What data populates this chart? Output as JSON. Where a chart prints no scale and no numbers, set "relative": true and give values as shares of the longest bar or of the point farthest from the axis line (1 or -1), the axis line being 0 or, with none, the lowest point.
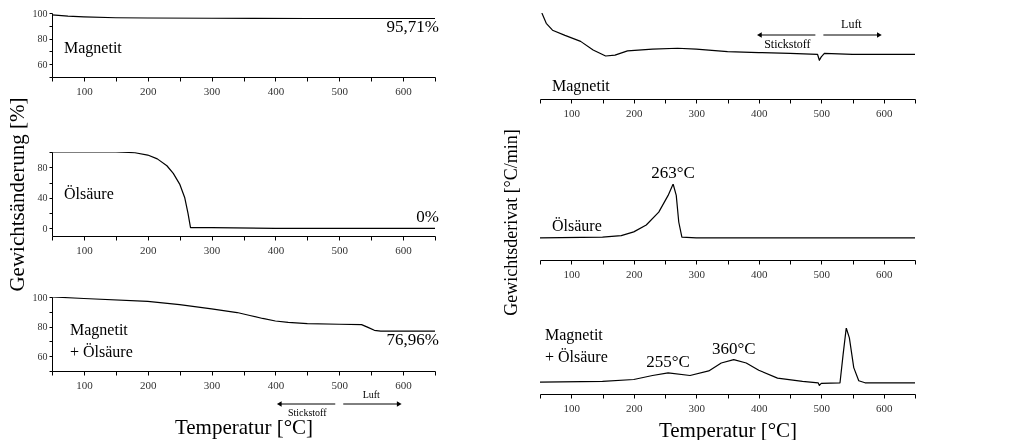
{
  "chart_data": [
    {
      "type": "line",
      "xlim": [
        50,
        650
      ],
      "ylim": [
        50,
        100
      ],
      "xticks": [
        {
          "value": 50,
          "label": null
        },
        100,
        {
          "value": 150,
          "label": null
        },
        200,
        {
          "value": 250,
          "label": null
        },
        300,
        {
          "value": 350,
          "label": null
        },
        400,
        {
          "value": 450,
          "label": null
        },
        500,
        {
          "value": 550,
          "label": null
        },
        600,
        {
          "value": 650,
          "label": null
        }
      ],
      "yticks": [
        {
          "value": 50,
          "label": null
        },
        60,
        {
          "value": 70,
          "label": null
        },
        80,
        {
          "value": 90,
          "label": null
        },
        100
      ],
      "series": [
        {
          "name": "Magnetit",
          "color": "#000000",
          "x": [
            50,
            75,
            100,
            150,
            200,
            300,
            450,
            650
          ],
          "values": [
            98.5,
            97.6,
            97,
            96.3,
            96.1,
            95.9,
            95.7,
            95.71
          ]
        }
      ],
      "annotations": [
        {
          "text": "95,71%",
          "x": 650,
          "y": 95.71
        }
      ]
    },
    {
      "type": "line",
      "xlim": [
        50,
        650
      ],
      "ylim": [
        -10,
        100
      ],
      "xticks": [
        {
          "value": 50,
          "label": null
        },
        100,
        {
          "value": 150,
          "label": null
        },
        200,
        {
          "value": 250,
          "label": null
        },
        300,
        {
          "value": 350,
          "label": null
        },
        400,
        {
          "value": 450,
          "label": null
        },
        500,
        {
          "value": 550,
          "label": null
        },
        600,
        {
          "value": 650,
          "label": null
        }
      ],
      "yticks": [
        0,
        {
          "value": 20,
          "label": null
        },
        40,
        {
          "value": 60,
          "label": null
        },
        80,
        {
          "value": 100,
          "label": null
        }
      ],
      "ylabel": "Gewichtsänderung [%]",
      "series": [
        {
          "name": "Ölsäure",
          "color": "#000000",
          "x": [
            50,
            150,
            180,
            200,
            215,
            230,
            240,
            250,
            258,
            263,
            267,
            300,
            400,
            650
          ],
          "values": [
            100,
            100,
            99,
            96,
            91,
            82,
            72,
            58,
            40,
            20,
            1,
            1,
            0,
            0
          ]
        }
      ],
      "annotations": [
        {
          "text": "0%",
          "x": 650,
          "y": 0
        }
      ]
    },
    {
      "type": "line",
      "xlim": [
        50,
        650
      ],
      "ylim": [
        50,
        100
      ],
      "xticks": [
        {
          "value": 50,
          "label": null
        },
        100,
        {
          "value": 150,
          "label": null
        },
        200,
        {
          "value": 250,
          "label": null
        },
        300,
        {
          "value": 350,
          "label": null
        },
        400,
        {
          "value": 450,
          "label": null
        },
        500,
        {
          "value": 550,
          "label": null
        },
        600,
        {
          "value": 650,
          "label": null
        }
      ],
      "yticks": [
        {
          "value": 50,
          "label": null
        },
        60,
        {
          "value": 70,
          "label": null
        },
        80,
        {
          "value": 90,
          "label": null
        },
        100
      ],
      "xlabel": "Temperatur [°C]",
      "series": [
        {
          "name": "Magnetit\n+ Ölsäure",
          "color": "#000000",
          "x": [
            50,
            100,
            200,
            250,
            300,
            340,
            360,
            380,
            400,
            420,
            450,
            500,
            535,
            545,
            555,
            565,
            650
          ],
          "values": [
            100,
            99,
            97,
            94.8,
            92,
            89.5,
            87.5,
            85.5,
            83.8,
            82.8,
            82,
            81.6,
            81.3,
            79.5,
            77.5,
            77,
            76.96
          ]
        }
      ],
      "annotations": [
        {
          "text": "76,96%",
          "x": 650,
          "y": 76.96
        },
        "Stickstoff",
        "Luft"
      ]
    },
    {
      "type": "line",
      "relative": true,
      "tick_labels": "x",
      "xlim": [
        50,
        650
      ],
      "xticks": [
        {
          "value": 50,
          "label": null
        },
        100,
        {
          "value": 150,
          "label": null
        },
        200,
        {
          "value": 250,
          "label": null
        },
        300,
        {
          "value": 350,
          "label": null
        },
        400,
        {
          "value": 450,
          "label": null
        },
        500,
        {
          "value": 550,
          "label": null
        },
        600,
        {
          "value": 650,
          "label": null
        }
      ],
      "series": [
        {
          "name": "Magnetit",
          "color": "#000000",
          "x": [
            53,
            60,
            70,
            90,
            115,
            135,
            155,
            170,
            190,
            230,
            270,
            300,
            350,
            400,
            450,
            494,
            497,
            500,
            505,
            550,
            600,
            650
          ],
          "values": [
            1,
            0.88,
            0.8,
            0.74,
            0.67,
            0.57,
            0.5,
            0.51,
            0.56,
            0.58,
            0.59,
            0.58,
            0.55,
            0.54,
            0.53,
            0.52,
            0.45,
            0.49,
            0.53,
            0.52,
            0.52,
            0.52
          ]
        }
      ],
      "annotations": [
        "Stickstoff",
        "Luft"
      ]
    },
    {
      "type": "line",
      "relative": true,
      "tick_labels": "x",
      "xlim": [
        50,
        650
      ],
      "xticks": [
        {
          "value": 50,
          "label": null
        },
        100,
        {
          "value": 150,
          "label": null
        },
        200,
        {
          "value": 250,
          "label": null
        },
        300,
        {
          "value": 350,
          "label": null
        },
        400,
        {
          "value": 450,
          "label": null
        },
        500,
        {
          "value": 550,
          "label": null
        },
        600,
        {
          "value": 650,
          "label": null
        }
      ],
      "ylabel": "Gewichtsderivat [°C/min]",
      "series": [
        {
          "name": "Ölsäure",
          "color": "#000000",
          "x": [
            50,
            150,
            180,
            200,
            220,
            240,
            255,
            263,
            268,
            272,
            277,
            300,
            400,
            650
          ],
          "values": [
            0.29,
            0.3,
            0.32,
            0.37,
            0.46,
            0.63,
            0.85,
            1,
            0.85,
            0.5,
            0.3,
            0.29,
            0.29,
            0.29
          ]
        }
      ],
      "annotations": [
        {
          "text": "263°C",
          "x": 263,
          "y": 1
        }
      ]
    },
    {
      "type": "line",
      "relative": true,
      "tick_labels": "x",
      "xlim": [
        50,
        650
      ],
      "xticks": [
        {
          "value": 50,
          "label": null
        },
        100,
        {
          "value": 150,
          "label": null
        },
        200,
        {
          "value": 250,
          "label": null
        },
        300,
        {
          "value": 350,
          "label": null
        },
        400,
        {
          "value": 450,
          "label": null
        },
        500,
        {
          "value": 550,
          "label": null
        },
        600,
        {
          "value": 650,
          "label": null
        }
      ],
      "xlabel": "Temperatur [°C]",
      "series": [
        {
          "name": "Magnetit\n+ Ölsäure",
          "color": "#000000",
          "x": [
            50,
            150,
            200,
            230,
            255,
            290,
            320,
            340,
            360,
            380,
            400,
            430,
            470,
            495,
            497,
            500,
            530,
            535,
            540,
            545,
            552,
            560,
            570,
            650
          ],
          "values": [
            0.18,
            0.19,
            0.22,
            0.28,
            0.32,
            0.28,
            0.35,
            0.47,
            0.52,
            0.47,
            0.36,
            0.24,
            0.19,
            0.17,
            0.13,
            0.16,
            0.17,
            0.6,
            1,
            0.85,
            0.4,
            0.2,
            0.17,
            0.17
          ]
        }
      ],
      "annotations": [
        {
          "text": "255°C",
          "x": 255,
          "y": 0.32
        },
        {
          "text": "360°C",
          "x": 360,
          "y": 0.52
        }
      ]
    }
  ]
}
